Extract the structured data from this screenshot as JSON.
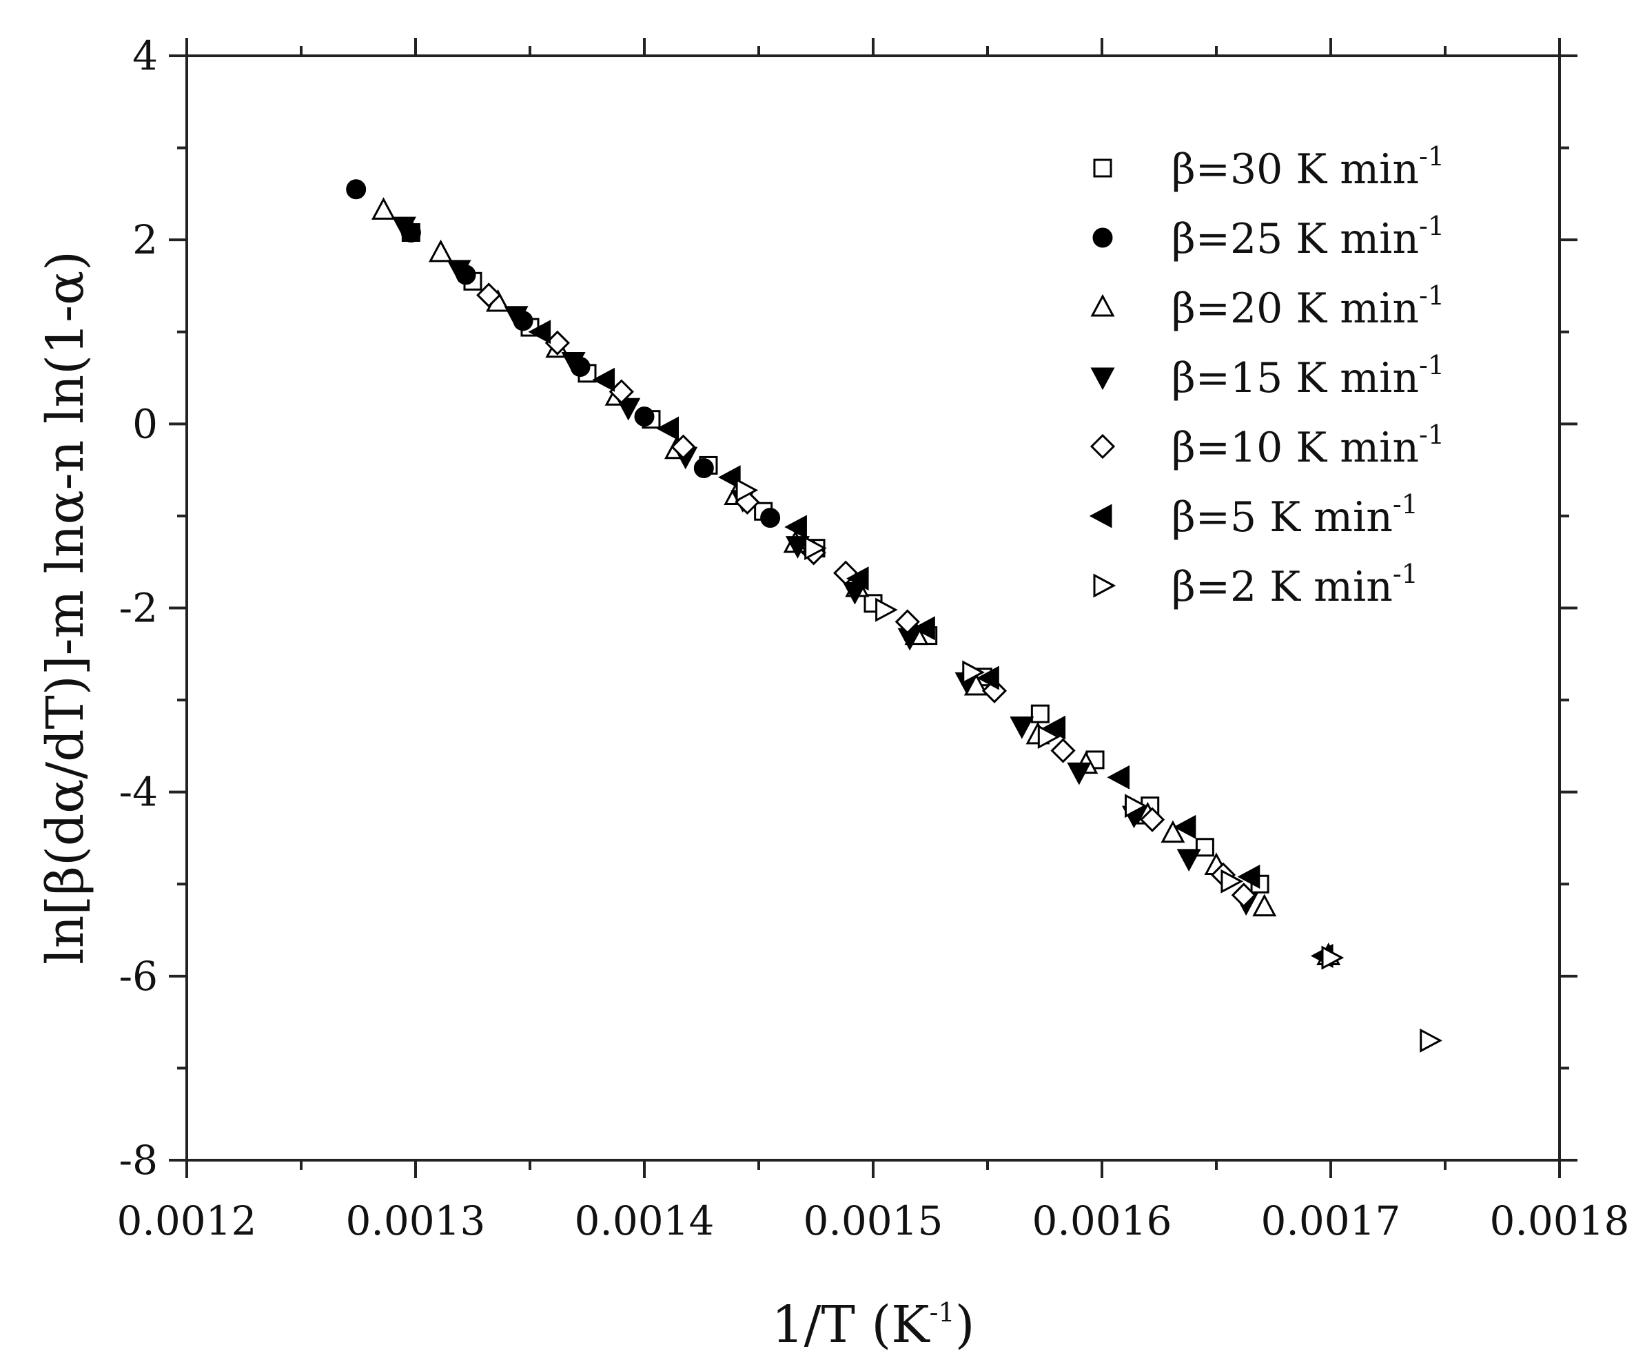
{
  "chart_data": {
    "type": "scatter",
    "xlabel": "1/T (K",
    "xlabel_sup": "-1",
    "xlabel_suffix": ")",
    "ylabel": "ln[β(dα/dT)]-m lnα-n ln(1-α)",
    "xlim": [
      0.0012,
      0.0018
    ],
    "ylim": [
      -8,
      4
    ],
    "x_ticks": [
      "0.0012",
      "0.0013",
      "0.0014",
      "0.0015",
      "0.0016",
      "0.0017",
      "0.0018"
    ],
    "y_ticks": [
      "-8",
      "-6",
      "-4",
      "-2",
      "0",
      "2",
      "4"
    ],
    "grid": false,
    "legend_position": "top-right",
    "series": [
      {
        "name": "β=30 K min",
        "sup": "-1",
        "marker": "square-open",
        "x": [
          0.001298,
          0.001325,
          0.00135,
          0.001375,
          0.001403,
          0.001428,
          0.001452,
          0.001475,
          0.0015,
          0.001524,
          0.001548,
          0.001573,
          0.001597,
          0.001621,
          0.001645,
          0.001669
        ],
        "y": [
          2.08,
          1.55,
          1.05,
          0.55,
          0.05,
          -0.45,
          -0.95,
          -1.35,
          -1.95,
          -2.3,
          -2.75,
          -3.15,
          -3.65,
          -4.15,
          -4.6,
          -5.0
        ]
      },
      {
        "name": "β=25 K min",
        "sup": "-1",
        "marker": "circle-filled",
        "x": [
          0.001274,
          0.001298,
          0.001322,
          0.001347,
          0.001372,
          0.0014,
          0.001426,
          0.001455
        ],
        "y": [
          2.55,
          2.08,
          1.62,
          1.12,
          0.62,
          0.08,
          -0.48,
          -1.02
        ]
      },
      {
        "name": "β=20 K min",
        "sup": "-1",
        "marker": "triangle-up-open",
        "x": [
          0.001286,
          0.001311,
          0.001336,
          0.001362,
          0.001388,
          0.001414,
          0.00144,
          0.001466,
          0.001493,
          0.001519,
          0.001545,
          0.001572,
          0.001593,
          0.00162,
          0.001631,
          0.00165,
          0.001671,
          0.001699
        ],
        "y": [
          2.32,
          1.86,
          1.32,
          0.82,
          0.3,
          -0.28,
          -0.78,
          -1.3,
          -1.78,
          -2.3,
          -2.85,
          -3.38,
          -3.7,
          -4.25,
          -4.45,
          -4.8,
          -5.25,
          -5.78
        ]
      },
      {
        "name": "β=15 K min",
        "sup": "-1",
        "marker": "triangle-down-filled",
        "x": [
          0.001295,
          0.001319,
          0.001344,
          0.001369,
          0.001393,
          0.001418,
          0.001443,
          0.001467,
          0.001492,
          0.001516,
          0.001541,
          0.001565,
          0.00159,
          0.001614,
          0.001638,
          0.001663
        ],
        "y": [
          2.15,
          1.68,
          1.18,
          0.68,
          0.18,
          -0.35,
          -0.82,
          -1.32,
          -1.82,
          -2.32,
          -2.8,
          -3.28,
          -3.78,
          -4.25,
          -4.72,
          -5.2
        ]
      },
      {
        "name": "β=10 K min",
        "sup": "-1",
        "marker": "diamond-open",
        "x": [
          0.001332,
          0.001362,
          0.00139,
          0.001417,
          0.001445,
          0.001474,
          0.001488,
          0.001515,
          0.001553,
          0.001583,
          0.001622,
          0.001653,
          0.001662
        ],
        "y": [
          1.4,
          0.88,
          0.35,
          -0.25,
          -0.85,
          -1.4,
          -1.62,
          -2.15,
          -2.9,
          -3.55,
          -4.3,
          -4.9,
          -5.12
        ]
      },
      {
        "name": "β=5 K min",
        "sup": "-1",
        "marker": "triangle-left-filled",
        "x": [
          0.001355,
          0.001383,
          0.001411,
          0.001438,
          0.001467,
          0.001494,
          0.001523,
          0.001551,
          0.00158,
          0.001608,
          0.001637,
          0.001665,
          0.001697
        ],
        "y": [
          1.0,
          0.48,
          -0.05,
          -0.58,
          -1.12,
          -1.68,
          -2.22,
          -2.76,
          -3.3,
          -3.84,
          -4.38,
          -4.92,
          -5.78
        ]
      },
      {
        "name": "β=2 K min",
        "sup": "-1",
        "marker": "triangle-right-open",
        "x": [
          0.001444,
          0.001474,
          0.001505,
          0.001543,
          0.001576,
          0.001614,
          0.001656,
          0.0017,
          0.001743
        ],
        "y": [
          -0.72,
          -1.35,
          -2.02,
          -2.7,
          -3.4,
          -4.15,
          -4.97,
          -5.8,
          -6.7
        ]
      }
    ]
  }
}
